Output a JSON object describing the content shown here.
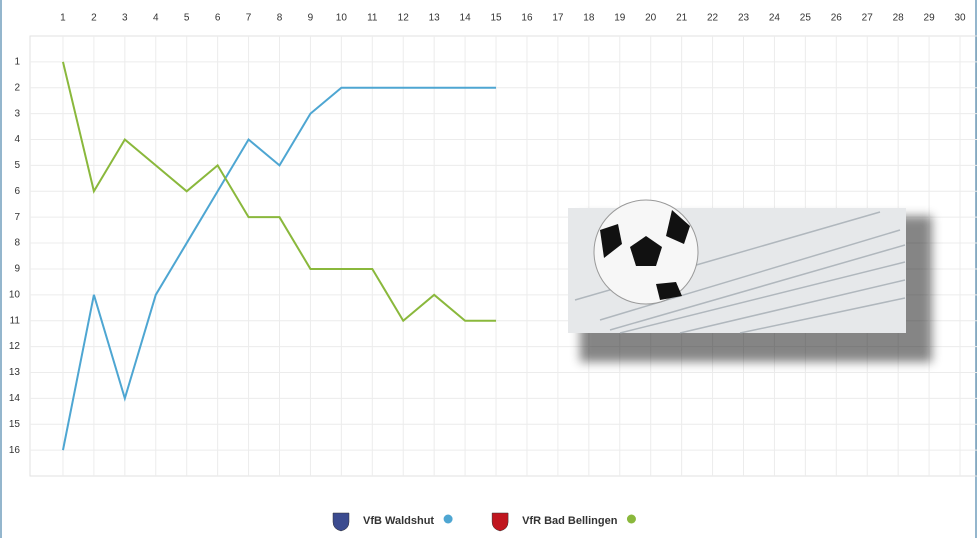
{
  "chart_data": {
    "type": "line",
    "x": [
      1,
      2,
      3,
      4,
      5,
      6,
      7,
      8,
      9,
      10,
      11,
      12,
      13,
      14,
      15
    ],
    "series": [
      {
        "name": "VfB Waldshut",
        "color": "#4ea6d2",
        "values": [
          16,
          10,
          14,
          10,
          8,
          6,
          4,
          5,
          3,
          2,
          2,
          2,
          2,
          2,
          2
        ]
      },
      {
        "name": "VfR Bad Bellingen",
        "color": "#8ab83c",
        "values": [
          1,
          6,
          4,
          5,
          6,
          5,
          7,
          7,
          9,
          9,
          9,
          11,
          10,
          11,
          11
        ]
      }
    ],
    "xlim": [
      0.5,
      30.5
    ],
    "xticks": [
      1,
      2,
      3,
      4,
      5,
      6,
      7,
      8,
      9,
      10,
      11,
      12,
      13,
      14,
      15,
      16,
      17,
      18,
      19,
      20,
      21,
      22,
      23,
      24,
      25,
      26,
      27,
      28,
      29,
      30
    ],
    "ylim": [
      0,
      17
    ],
    "y_inverted": true,
    "yticks": [
      1,
      2,
      3,
      4,
      5,
      6,
      7,
      8,
      9,
      10,
      11,
      12,
      13,
      14,
      15,
      16
    ],
    "grid": true,
    "legend": "bottom"
  }
}
